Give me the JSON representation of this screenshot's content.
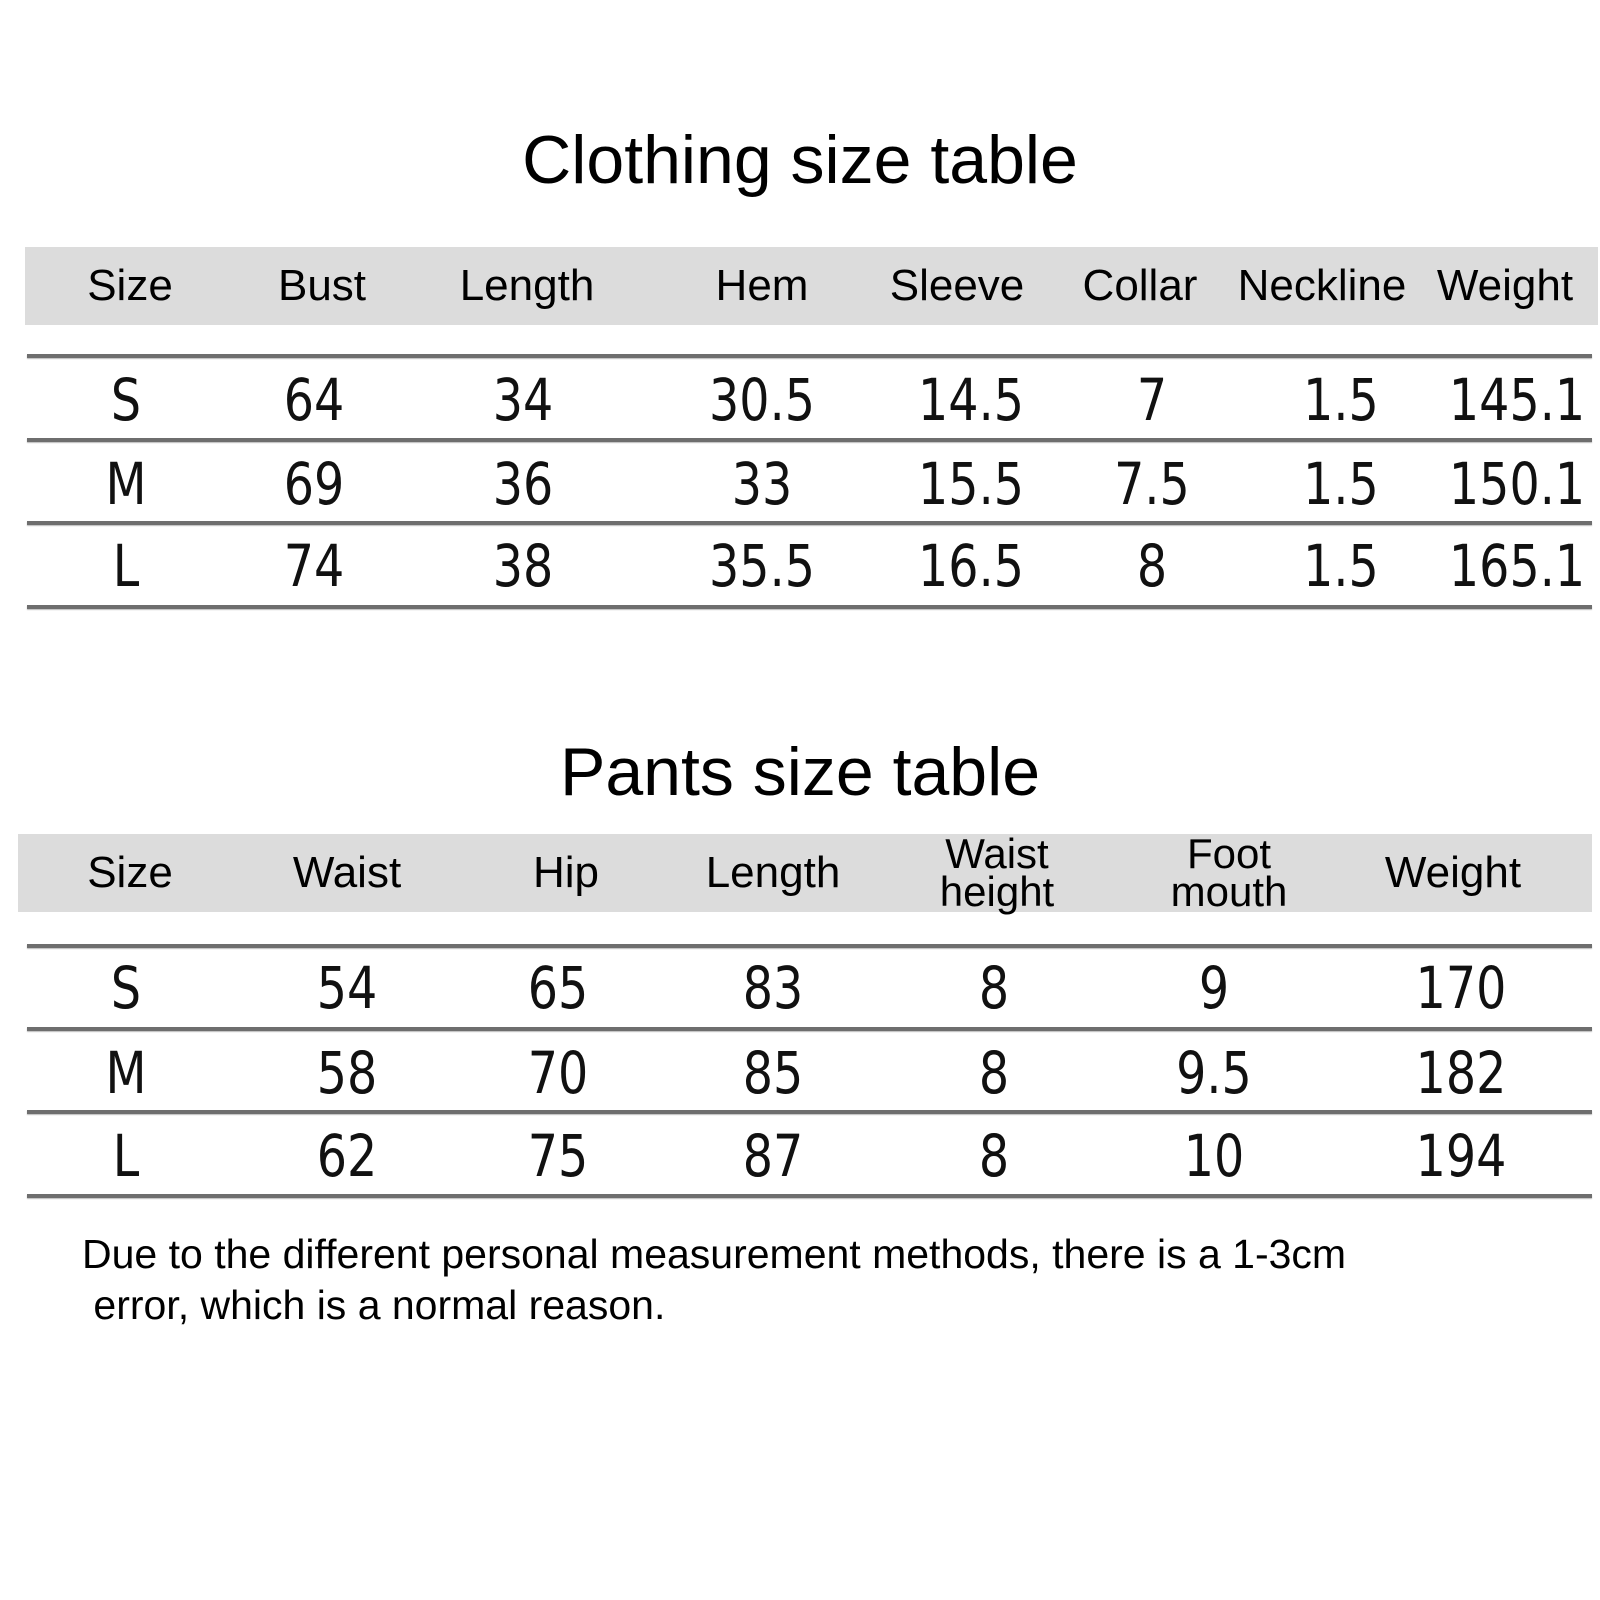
{
  "clothing": {
    "title": "Clothing size table",
    "headers": [
      "Size",
      "Bust",
      "Length",
      "Hem",
      "Sleeve",
      "Collar",
      "Neckline",
      "Weight"
    ],
    "rows": [
      [
        "S",
        "64",
        "34",
        "30.5",
        "14.5",
        "7",
        "1.5",
        "145.1"
      ],
      [
        "M",
        "69",
        "36",
        "33",
        "15.5",
        "7.5",
        "1.5",
        "150.1"
      ],
      [
        "L",
        "74",
        "38",
        "35.5",
        "16.5",
        "8",
        "1.5",
        "165.1"
      ]
    ]
  },
  "pants": {
    "title": "Pants size table",
    "headers": [
      "Size",
      "Waist",
      "Hip",
      "Length",
      "Waist\nheight",
      "Foot\nmouth",
      "Weight"
    ],
    "rows": [
      [
        "S",
        "54",
        "65",
        "83",
        "8",
        "9",
        "170"
      ],
      [
        "M",
        "58",
        "70",
        "85",
        "8",
        "9.5",
        "182"
      ],
      [
        "L",
        "62",
        "75",
        "87",
        "8",
        "10",
        "194"
      ]
    ]
  },
  "note": {
    "line1": "Due to the different personal measurement methods, there is a 1-3cm",
    "line2": " error, which is a normal reason."
  },
  "colors": {
    "header_band": "#dcdcdc",
    "rule": "#6e6e6e"
  }
}
